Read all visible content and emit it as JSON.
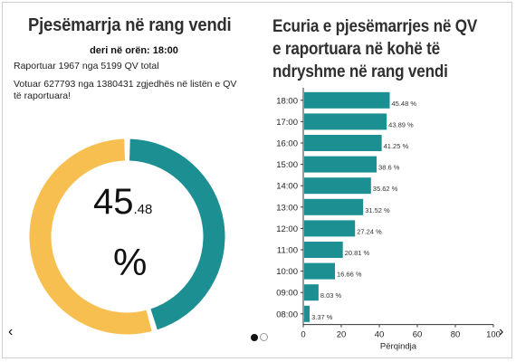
{
  "left_panel": {
    "title": "Pjesëmarrja në rang vendi",
    "time_label": "deri në orën: 18:00",
    "reported_text": "Raportuar 1967 nga 5199 QV total",
    "voted_text": "Votuar 627793 nga 1380431 zgjedhës në listën e QV të raportuara!",
    "percent_int": "45",
    "percent_dec": ".48",
    "percent_sign": "%",
    "turnout_value": 45.48,
    "colors": {
      "filled": "#1b8f92",
      "remaining": "#f7bf4f"
    }
  },
  "right_panel": {
    "title": "Ecuria e pjesëmarrjes në QV e raportuara në kohë të ndryshme në rang vendi"
  },
  "chart_data": {
    "type": "bar",
    "orientation": "horizontal",
    "categories": [
      "18:00",
      "17:00",
      "16:00",
      "15:00",
      "14:00",
      "13:00",
      "12:00",
      "11:00",
      "10:00",
      "09:00",
      "08:00"
    ],
    "values": [
      45.48,
      43.89,
      41.25,
      38.6,
      35.62,
      31.52,
      27.24,
      20.81,
      16.66,
      8.03,
      3.37
    ],
    "data_labels": [
      "45.48 %",
      "43.89 %",
      "41.25 %",
      "38.6 %",
      "35.62 %",
      "31.52 %",
      "27.24 %",
      "20.81 %",
      "16.66 %",
      "8.03 %",
      "3.37 %"
    ],
    "xlabel": "Përqindja",
    "xlim": [
      0,
      100
    ],
    "xticks": [
      0,
      20,
      40,
      60,
      80,
      100
    ],
    "bar_color": "#1b8f92",
    "grid": false
  },
  "nav": {
    "prev_arrow": "‹",
    "next_arrow": "›",
    "active_dot_color": "#111111",
    "inactive_dot_color": "#ffffff"
  }
}
